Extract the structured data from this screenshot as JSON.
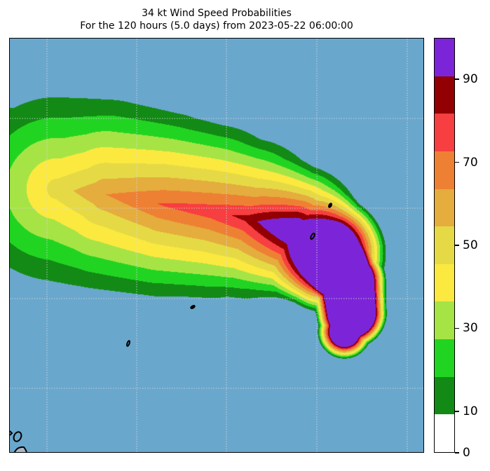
{
  "title": {
    "line1": "34 kt Wind Speed Probabilities",
    "line2": "For the 120 hours (5.0 days) from 2023-05-22 06:00:00"
  },
  "map": {
    "ocean_color": "#6aa7cc",
    "coastline_color": "#000000",
    "grid_color": "#d8dde2"
  },
  "colorbar": {
    "levels": [
      0,
      10,
      20,
      30,
      40,
      50,
      60,
      70,
      80,
      90,
      100
    ],
    "colors": [
      "#ffffff",
      "#138a15",
      "#22d422",
      "#a6e445",
      "#fbe940",
      "#e5da45",
      "#e4ad3d",
      "#ee8034",
      "#f73e40",
      "#920003",
      "#7c25d8"
    ],
    "tick_labels": [
      "0",
      "10",
      "30",
      "50",
      "70",
      "90"
    ],
    "tick_values": [
      0,
      10,
      30,
      50,
      70,
      90
    ]
  }
}
